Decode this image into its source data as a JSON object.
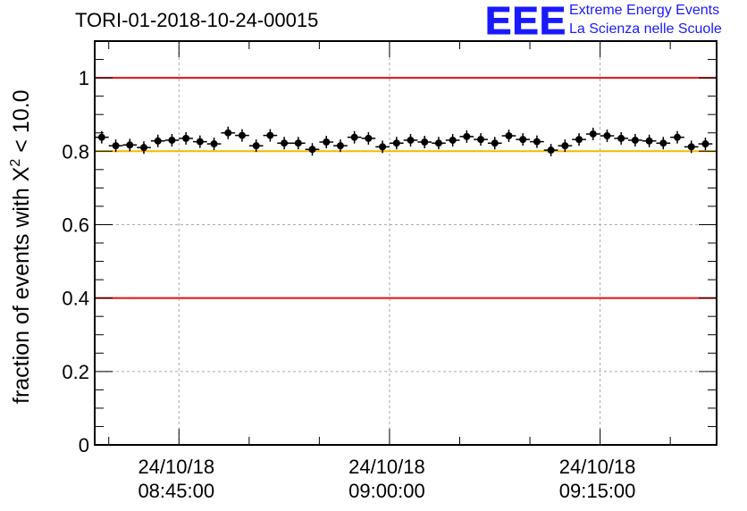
{
  "header": {
    "title": "TORI-01-2018-10-24-00015",
    "logo_text": "EEE",
    "logo_line1": "Extreme Energy Events",
    "logo_line2": "La Scienza nelle Scuole"
  },
  "chart_data": {
    "type": "scatter",
    "title": "TORI-01-2018-10-24-00015",
    "ylabel_prefix": "fraction of events with ",
    "ylabel_symbol": "X",
    "ylabel_sup": "2",
    "ylabel_suffix": " < 10.0",
    "ylim": [
      0,
      1.1
    ],
    "yticks": [
      0,
      0.2,
      0.4,
      0.6,
      0.8,
      1
    ],
    "ytick_labels": [
      "0",
      "0.2",
      "0.4",
      "0.6",
      "0.8",
      "1"
    ],
    "xlim_minutes": [
      -6.0,
      38.3
    ],
    "xticks_minutes": [
      0,
      15,
      30
    ],
    "xtick_date_labels": [
      "24/10/18",
      "24/10/18",
      "24/10/18"
    ],
    "xtick_time_labels": [
      "08:45:00",
      "09:00:00",
      "09:15:00"
    ],
    "grid": true,
    "reference_lines": [
      {
        "value": 1.0,
        "color": "#e01010"
      },
      {
        "value": 0.8,
        "color": "#f5b800"
      },
      {
        "value": 0.4,
        "color": "#e01010"
      }
    ],
    "bin_width_minutes": 1,
    "series": [
      {
        "name": "fraction",
        "x_minutes": [
          -5.5,
          -4.5,
          -3.5,
          -2.5,
          -1.5,
          -0.5,
          0.5,
          1.5,
          2.5,
          3.5,
          4.5,
          5.5,
          6.5,
          7.5,
          8.5,
          9.5,
          10.5,
          11.5,
          12.5,
          13.5,
          14.5,
          15.5,
          16.5,
          17.5,
          18.5,
          19.5,
          20.5,
          21.5,
          22.5,
          23.5,
          24.5,
          25.5,
          26.5,
          27.5,
          28.5,
          29.5,
          30.5,
          31.5,
          32.5,
          33.5,
          34.5,
          35.5,
          36.5,
          37.5
        ],
        "y": [
          0.838,
          0.815,
          0.817,
          0.81,
          0.828,
          0.83,
          0.835,
          0.826,
          0.82,
          0.85,
          0.843,
          0.815,
          0.843,
          0.822,
          0.822,
          0.805,
          0.825,
          0.815,
          0.838,
          0.835,
          0.812,
          0.822,
          0.83,
          0.825,
          0.822,
          0.83,
          0.84,
          0.832,
          0.822,
          0.842,
          0.832,
          0.826,
          0.803,
          0.815,
          0.832,
          0.847,
          0.842,
          0.835,
          0.83,
          0.828,
          0.822,
          0.838,
          0.812,
          0.82
        ]
      }
    ]
  }
}
